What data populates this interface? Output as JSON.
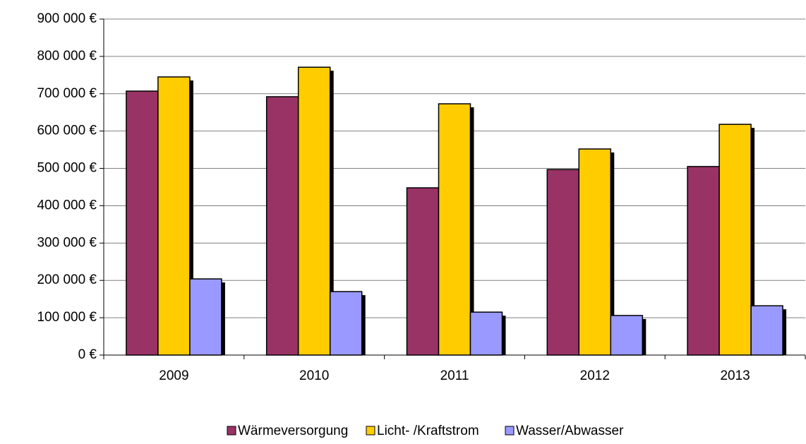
{
  "chart_data": {
    "type": "bar",
    "categories": [
      "2009",
      "2010",
      "2011",
      "2012",
      "2013"
    ],
    "series": [
      {
        "name": "Wärmeversorgung",
        "color": "#993366",
        "values": [
          707000,
          692000,
          448000,
          497000,
          505000
        ]
      },
      {
        "name": "Licht- /Kraftstrom",
        "color": "#ffcc00",
        "values": [
          745000,
          771000,
          673000,
          552000,
          618000
        ]
      },
      {
        "name": "Wasser/Abwasser",
        "color": "#9999ff",
        "values": [
          204000,
          170000,
          115000,
          106000,
          132000
        ]
      }
    ],
    "ylim": [
      0,
      900000
    ],
    "yticks": [
      {
        "value": 0,
        "label": "0 €"
      },
      {
        "value": 100000,
        "label": "100 000 €"
      },
      {
        "value": 200000,
        "label": "200 000 €"
      },
      {
        "value": 300000,
        "label": "300 000 €"
      },
      {
        "value": 400000,
        "label": "400 000 €"
      },
      {
        "value": 500000,
        "label": "500 000 €"
      },
      {
        "value": 600000,
        "label": "600 000 €"
      },
      {
        "value": 700000,
        "label": "700 000 €"
      },
      {
        "value": 800000,
        "label": "800 000 €"
      },
      {
        "value": 900000,
        "label": "900 000 €"
      }
    ],
    "grid": true,
    "legend": "bottom"
  }
}
